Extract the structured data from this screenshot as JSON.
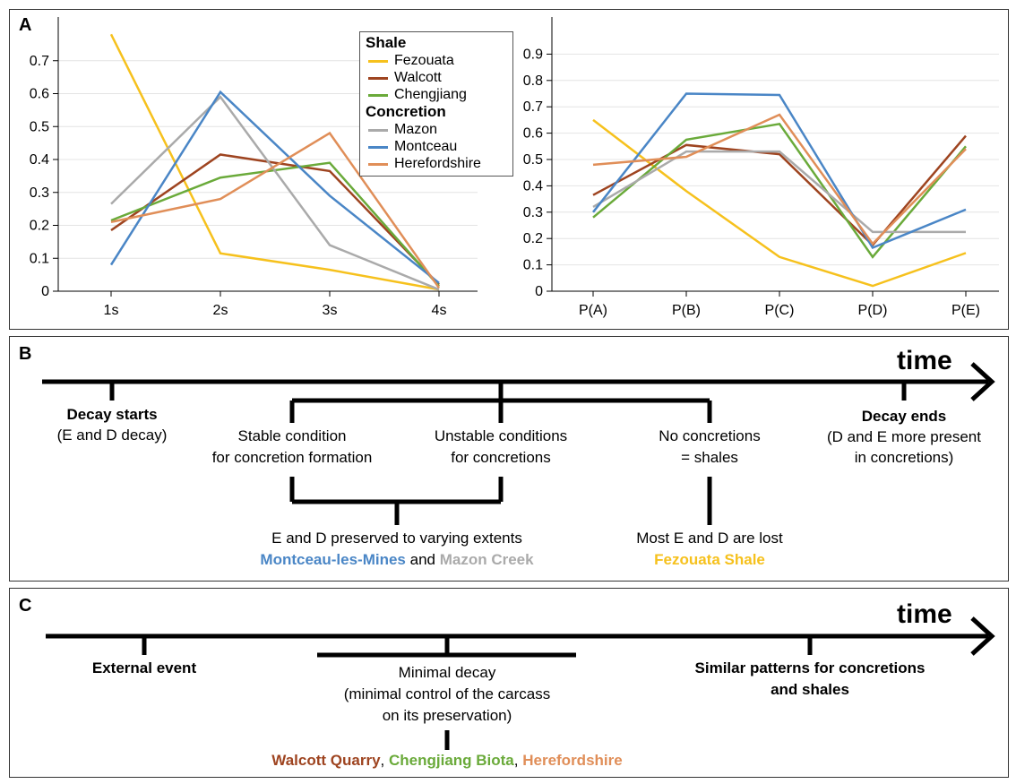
{
  "panels": {
    "a": "A",
    "b": "B",
    "c": "C"
  },
  "colors": {
    "Fezouata": "#f6c11d",
    "Walcott": "#9e4420",
    "Chengjiang": "#6aaa3a",
    "Mazon": "#aaaaaa",
    "Montceau": "#4a86c6",
    "Herefordshire": "#e08e58"
  },
  "legend": {
    "shale_title": "Shale",
    "concretion_title": "Concretion",
    "shale": [
      "Fezouata",
      "Walcott",
      "Chengjiang"
    ],
    "concretion": [
      "Mazon",
      "Montceau",
      "Herefordshire"
    ]
  },
  "chart_data": [
    {
      "type": "line",
      "categories": [
        "1s",
        "2s",
        "3s",
        "4s"
      ],
      "ylim": [
        0,
        0.8
      ],
      "yticks": [
        "0",
        "0.1",
        "0.2",
        "0.3",
        "0.4",
        "0.5",
        "0.6",
        "0.7"
      ],
      "grid": true,
      "legend_position": "top-right",
      "series": [
        {
          "name": "Fezouata",
          "values": [
            0.78,
            0.115,
            0.065,
            0.005
          ]
        },
        {
          "name": "Walcott",
          "values": [
            0.185,
            0.415,
            0.365,
            0.02
          ]
        },
        {
          "name": "Chengjiang",
          "values": [
            0.215,
            0.345,
            0.39,
            0.015
          ]
        },
        {
          "name": "Mazon",
          "values": [
            0.265,
            0.59,
            0.14,
            0.005
          ]
        },
        {
          "name": "Montceau",
          "values": [
            0.08,
            0.605,
            0.29,
            0.025
          ]
        },
        {
          "name": "Herefordshire",
          "values": [
            0.21,
            0.28,
            0.48,
            0.01
          ]
        }
      ]
    },
    {
      "type": "line",
      "categories": [
        "P(A)",
        "P(B)",
        "P(C)",
        "P(D)",
        "P(E)"
      ],
      "ylim": [
        0,
        1.0
      ],
      "yticks": [
        "0",
        "0.1",
        "0.2",
        "0.3",
        "0.4",
        "0.5",
        "0.6",
        "0.7",
        "0.8",
        "0.9"
      ],
      "grid": true,
      "series": [
        {
          "name": "Fezouata",
          "values": [
            0.65,
            0.38,
            0.13,
            0.02,
            0.145
          ]
        },
        {
          "name": "Walcott",
          "values": [
            0.365,
            0.555,
            0.52,
            0.175,
            0.59
          ]
        },
        {
          "name": "Chengjiang",
          "values": [
            0.28,
            0.575,
            0.635,
            0.13,
            0.55
          ]
        },
        {
          "name": "Mazon",
          "values": [
            0.32,
            0.53,
            0.53,
            0.225,
            0.225
          ]
        },
        {
          "name": "Montceau",
          "values": [
            0.3,
            0.75,
            0.745,
            0.165,
            0.31
          ]
        },
        {
          "name": "Herefordshire",
          "values": [
            0.48,
            0.51,
            0.67,
            0.18,
            0.54
          ]
        }
      ]
    }
  ],
  "timeline_b": {
    "time": "time",
    "decay_starts": "Decay starts",
    "decay_starts_sub": "(E and D decay)",
    "stable_1": "Stable condition",
    "stable_2": "for concretion formation",
    "unstable_1": "Unstable conditions",
    "unstable_2": "for concretions",
    "noconc_1": "No concretions",
    "noconc_2": "= shales",
    "decay_ends": "Decay ends",
    "decay_ends_1": "(D and E more present",
    "decay_ends_2": "in concretions)",
    "preserved": "E and D preserved to varying extents",
    "montceau": "Montceau-les-Mines",
    "and": " and ",
    "mazon": "Mazon Creek",
    "lost": "Most E and D are lost",
    "fezouata": "Fezouata Shale"
  },
  "timeline_c": {
    "time": "time",
    "external": "External event",
    "minimal_1": "Minimal decay",
    "minimal_2": "(minimal control of the carcass",
    "minimal_3": "on its preservation)",
    "similar_1": "Similar patterns for concretions",
    "similar_2": "and shales",
    "walcott": "Walcott Quarry",
    "sep1": ", ",
    "chengjiang": "Chengjiang Biota",
    "sep2": ", ",
    "herefordshire": "Herefordshire"
  }
}
